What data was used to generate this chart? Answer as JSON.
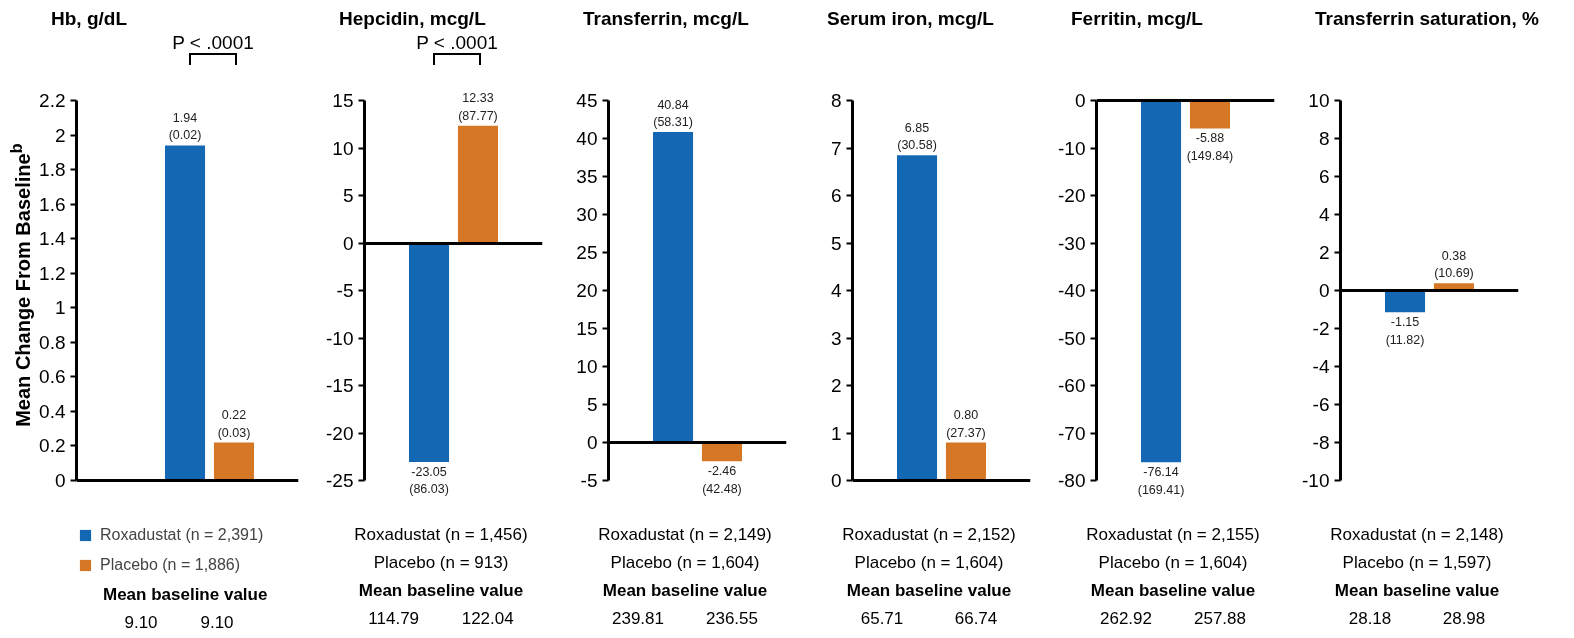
{
  "chart_data": [
    {
      "type": "bar",
      "title": "Hb, g/dL",
      "ylabel": "Mean Change From Baseline$^{b}$",
      "categories": [
        null
      ],
      "legend": "bottom",
      "ylim": [
        0,
        2.2
      ],
      "yticks": [
        0,
        0.2,
        0.4,
        0.6,
        0.8,
        1,
        1.2,
        1.4,
        1.6,
        1.8,
        2,
        2.2
      ],
      "series": [
        {
          "name": "Roxadustat (n = 2,391)",
          "color": "#1467b3",
          "values": [
            1.94
          ],
          "value_labels": [
            "1.94\n(0.02)"
          ]
        },
        {
          "name": "Placebo (n = 1,886)",
          "color": "#d67726",
          "values": [
            0.22
          ],
          "value_labels": [
            "0.22\n(0.03)"
          ]
        }
      ],
      "annotations": [
        "P < .0001",
        "Mean baseline value",
        "9.10",
        "9.10"
      ]
    },
    {
      "type": "bar",
      "title": "Hepcidin, mcg/L",
      "categories": [
        null
      ],
      "ylim": [
        -25,
        15
      ],
      "yticks": [
        -25,
        -20,
        -15,
        -10,
        -5,
        0,
        5,
        10,
        15
      ],
      "series": [
        {
          "color": "#1467b3",
          "values": [
            -23.05
          ],
          "value_labels": [
            "-23.05\n(86.03)"
          ]
        },
        {
          "color": "#d67726",
          "values": [
            12.33
          ],
          "value_labels": [
            "12.33\n(87.77)"
          ]
        }
      ],
      "annotations": [
        "P < .0001",
        "Roxadustat (n = 1,456)",
        "Placebo (n = 913)",
        "Mean baseline value",
        "114.79",
        "122.04"
      ]
    },
    {
      "type": "bar",
      "title": "Transferrin, mcg/L",
      "categories": [
        null
      ],
      "ylim": [
        -5,
        45
      ],
      "yticks": [
        -5,
        0,
        5,
        10,
        15,
        20,
        25,
        30,
        35,
        40,
        45
      ],
      "series": [
        {
          "color": "#1467b3",
          "values": [
            40.84
          ],
          "value_labels": [
            "40.84\n(58.31)"
          ]
        },
        {
          "color": "#d67726",
          "values": [
            -2.46
          ],
          "value_labels": [
            "-2.46\n(42.48)"
          ]
        }
      ],
      "annotations": [
        "Roxadustat (n = 2,149)",
        "Placebo (n = 1,604)",
        "Mean baseline value",
        "239.81",
        "236.55"
      ]
    },
    {
      "type": "bar",
      "title": "Serum iron, mcg/L",
      "categories": [
        null
      ],
      "ylim": [
        0,
        8
      ],
      "yticks": [
        0,
        1,
        2,
        3,
        4,
        5,
        6,
        7,
        8
      ],
      "series": [
        {
          "color": "#1467b3",
          "values": [
            6.85
          ],
          "value_labels": [
            "6.85\n(30.58)"
          ]
        },
        {
          "color": "#d67726",
          "values": [
            0.8
          ],
          "value_labels": [
            "0.80\n(27.37)"
          ]
        }
      ],
      "annotations": [
        "Roxadustat (n = 2,152)",
        "Placebo (n = 1,604)",
        "Mean baseline value",
        "65.71",
        "66.74"
      ]
    },
    {
      "type": "bar",
      "title": "Ferritin, mcg/L",
      "categories": [
        null
      ],
      "ylim": [
        -80,
        0
      ],
      "yticks": [
        -80,
        -70,
        -60,
        -50,
        -40,
        -30,
        -20,
        -10,
        0
      ],
      "series": [
        {
          "color": "#1467b3",
          "values": [
            -76.14
          ],
          "value_labels": [
            "-76.14\n(169.41)"
          ]
        },
        {
          "color": "#d67726",
          "values": [
            -5.88
          ],
          "value_labels": [
            "-5.88\n(149.84)"
          ]
        }
      ],
      "annotations": [
        "Roxadustat (n = 2,155)",
        "Placebo (n = 1,604)",
        "Mean baseline value",
        "262.92",
        "257.88"
      ]
    },
    {
      "type": "bar",
      "title": "Transferrin saturation, %",
      "categories": [
        null
      ],
      "ylim": [
        -10,
        10
      ],
      "yticks": [
        -10,
        -8,
        -6,
        -4,
        -2,
        0,
        2,
        4,
        6,
        8,
        10
      ],
      "series": [
        {
          "color": "#1467b3",
          "values": [
            -1.15
          ],
          "value_labels": [
            "-1.15\n(11.82)"
          ]
        },
        {
          "color": "#d67726",
          "values": [
            0.38
          ],
          "value_labels": [
            "0.38\n(10.69)"
          ]
        }
      ],
      "annotations": [
        "Roxadustat (n = 2,148)",
        "Placebo (n = 1,597)",
        "Mean baseline value",
        "28.18",
        "28.98"
      ]
    }
  ]
}
